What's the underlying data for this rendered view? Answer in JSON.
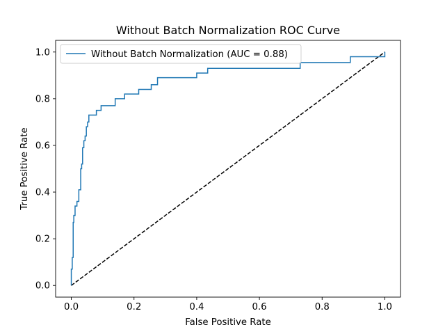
{
  "chart_data": {
    "type": "line",
    "title": "Without Batch Normalization ROC Curve",
    "xlabel": "False Positive Rate",
    "ylabel": "True Positive Rate",
    "xlim": [
      -0.05,
      1.05
    ],
    "ylim": [
      -0.05,
      1.05
    ],
    "xticks": [
      0.0,
      0.2,
      0.4,
      0.6,
      0.8,
      1.0
    ],
    "yticks": [
      0.0,
      0.2,
      0.4,
      0.6,
      0.8,
      1.0
    ],
    "xtick_labels": [
      "0.0",
      "0.2",
      "0.4",
      "0.6",
      "0.8",
      "1.0"
    ],
    "ytick_labels": [
      "0.0",
      "0.2",
      "0.4",
      "0.6",
      "0.8",
      "1.0"
    ],
    "grid": false,
    "legend_position": "upper-left",
    "series": [
      {
        "name": "Without Batch Normalization (AUC = 0.88)",
        "color": "#1f77b4",
        "style": "solid",
        "x": [
          0.0,
          0.0,
          0.003,
          0.003,
          0.006,
          0.006,
          0.008,
          0.008,
          0.012,
          0.012,
          0.018,
          0.018,
          0.024,
          0.024,
          0.03,
          0.03,
          0.033,
          0.033,
          0.036,
          0.036,
          0.04,
          0.04,
          0.044,
          0.044,
          0.048,
          0.048,
          0.052,
          0.052,
          0.056,
          0.056,
          0.065,
          0.065,
          0.08,
          0.08,
          0.095,
          0.095,
          0.14,
          0.14,
          0.17,
          0.17,
          0.215,
          0.215,
          0.255,
          0.255,
          0.275,
          0.275,
          0.4,
          0.4,
          0.435,
          0.435,
          0.73,
          0.73,
          0.89,
          0.89,
          1.0,
          1.0
        ],
        "y": [
          0.0,
          0.07,
          0.07,
          0.12,
          0.12,
          0.27,
          0.27,
          0.3,
          0.3,
          0.34,
          0.34,
          0.36,
          0.36,
          0.41,
          0.41,
          0.5,
          0.5,
          0.52,
          0.52,
          0.59,
          0.59,
          0.62,
          0.62,
          0.64,
          0.64,
          0.68,
          0.68,
          0.7,
          0.7,
          0.73,
          0.73,
          0.73,
          0.73,
          0.75,
          0.75,
          0.77,
          0.77,
          0.8,
          0.8,
          0.82,
          0.82,
          0.84,
          0.84,
          0.86,
          0.86,
          0.89,
          0.89,
          0.91,
          0.91,
          0.93,
          0.93,
          0.955,
          0.955,
          0.98,
          0.98,
          1.0
        ]
      },
      {
        "name": "",
        "color": "#000000",
        "style": "dashed",
        "x": [
          0.0,
          1.0
        ],
        "y": [
          0.0,
          1.0
        ]
      }
    ]
  }
}
